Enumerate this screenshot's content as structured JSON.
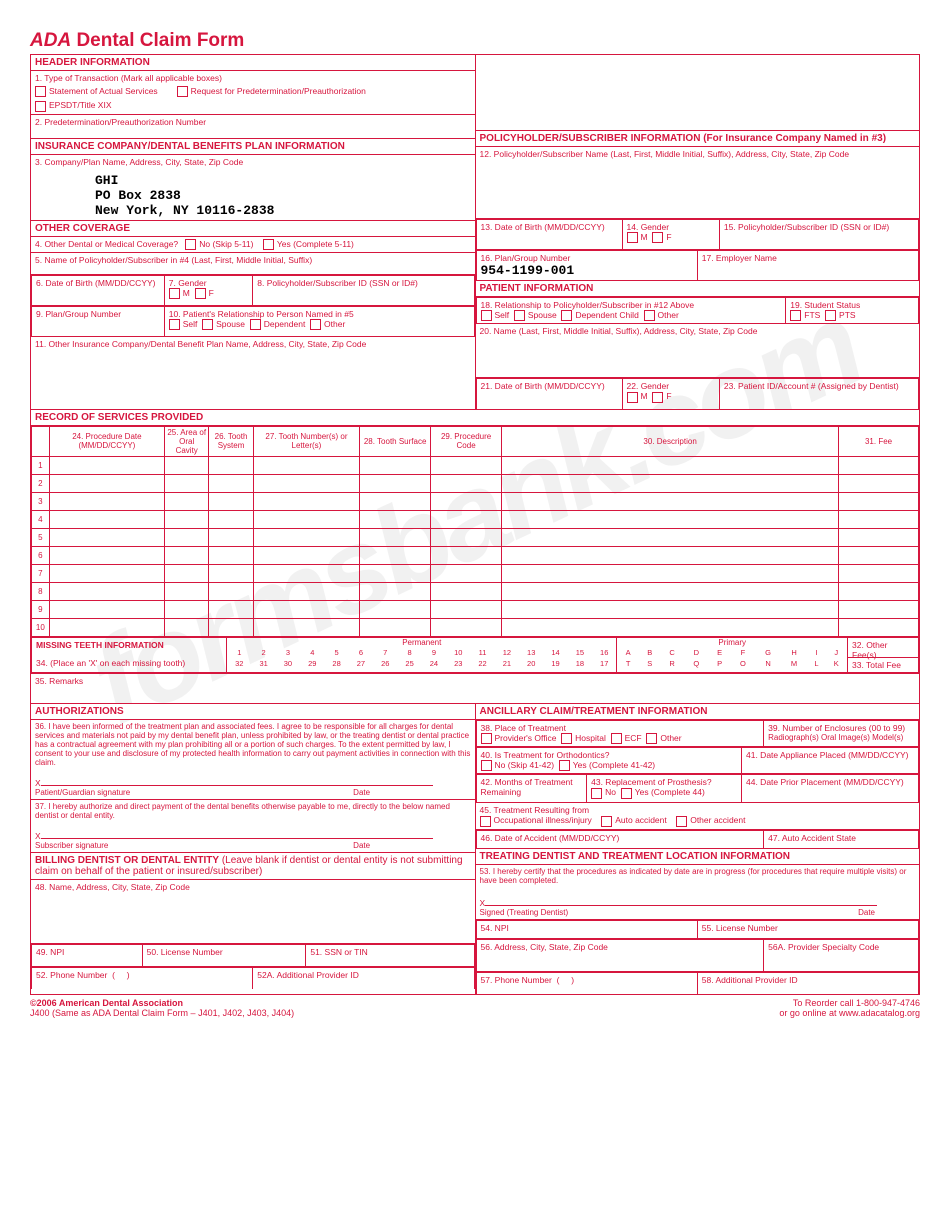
{
  "watermark": "formsbank.com",
  "title_prefix": "ADA",
  "title": "Dental Claim Form",
  "header_info": {
    "heading": "HEADER INFORMATION",
    "q1": "1. Type of Transaction (Mark all applicable boxes)",
    "opt_a": "Statement of Actual Services",
    "opt_b": "Request for Predetermination/Preauthorization",
    "opt_c": "EPSDT/Title XIX",
    "q2": "2. Predetermination/Preauthorization Number"
  },
  "insurance": {
    "heading": "INSURANCE COMPANY/DENTAL BENEFITS PLAN INFORMATION",
    "q3": "3. Company/Plan Name, Address, City, State, Zip Code",
    "name": "GHI",
    "addr1": "PO Box 2838",
    "addr2": "New York, NY 10116-2838"
  },
  "other_cov": {
    "heading": "OTHER COVERAGE",
    "q4": "4. Other Dental or Medical Coverage?",
    "no": "No (Skip 5-11)",
    "yes": "Yes (Complete 5-11)",
    "q5": "5. Name of Policyholder/Subscriber in #4 (Last, First, Middle Initial, Suffix)",
    "q6": "6. Date of Birth (MM/DD/CCYY)",
    "q7": "7. Gender",
    "q7m": "M",
    "q7f": "F",
    "q8": "8. Policyholder/Subscriber ID (SSN or ID#)",
    "q9": "9. Plan/Group Number",
    "q10": "10. Patient's Relationship to Person Named in #5",
    "self": "Self",
    "spouse": "Spouse",
    "dep": "Dependent",
    "other": "Other",
    "q11": "11. Other Insurance Company/Dental Benefit Plan Name, Address, City, State, Zip Code"
  },
  "policyholder": {
    "heading": "POLICYHOLDER/SUBSCRIBER INFORMATION (For Insurance Company Named in #3)",
    "q12": "12. Policyholder/Subscriber Name (Last, First, Middle Initial, Suffix), Address, City, State, Zip Code",
    "q13": "13. Date of Birth (MM/DD/CCYY)",
    "q14": "14. Gender",
    "m": "M",
    "f": "F",
    "q15": "15. Policyholder/Subscriber ID (SSN or ID#)",
    "q16": "16. Plan/Group Number",
    "q16_val": "954-1199-001",
    "q17": "17. Employer Name"
  },
  "patient": {
    "heading": "PATIENT INFORMATION",
    "q18": "18. Relationship to Policyholder/Subscriber in #12 Above",
    "self": "Self",
    "spouse": "Spouse",
    "depchild": "Dependent Child",
    "other": "Other",
    "q19": "19. Student Status",
    "fts": "FTS",
    "pts": "PTS",
    "q20": "20. Name (Last, First, Middle Initial, Suffix), Address, City, State, Zip Code",
    "q21": "21. Date of Birth (MM/DD/CCYY)",
    "q22": "22. Gender",
    "m": "M",
    "f": "F",
    "q23": "23. Patient ID/Account # (Assigned by Dentist)"
  },
  "services": {
    "heading": "RECORD OF SERVICES PROVIDED",
    "c24": "24. Procedure Date (MM/DD/CCYY)",
    "c25": "25. Area of Oral Cavity",
    "c26": "26. Tooth System",
    "c27": "27. Tooth Number(s) or Letter(s)",
    "c28": "28. Tooth Surface",
    "c29": "29. Procedure Code",
    "c30": "30. Description",
    "c31": "31. Fee",
    "rows": [
      "1",
      "2",
      "3",
      "4",
      "5",
      "6",
      "7",
      "8",
      "9",
      "10"
    ]
  },
  "missing": {
    "heading": "MISSING TEETH INFORMATION",
    "q34": "34. (Place an 'X' on each missing tooth)",
    "perm": "Permanent",
    "prim": "Primary",
    "r1": [
      "1",
      "2",
      "3",
      "4",
      "5",
      "6",
      "7",
      "8",
      "9",
      "10",
      "11",
      "12",
      "13",
      "14",
      "15",
      "16"
    ],
    "r2": [
      "32",
      "31",
      "30",
      "29",
      "28",
      "27",
      "26",
      "25",
      "24",
      "23",
      "22",
      "21",
      "20",
      "19",
      "18",
      "17"
    ],
    "r3": [
      "A",
      "B",
      "C",
      "D",
      "E",
      "F",
      "G",
      "H",
      "I",
      "J"
    ],
    "r4": [
      "T",
      "S",
      "R",
      "Q",
      "P",
      "O",
      "N",
      "M",
      "L",
      "K"
    ],
    "q32": "32. Other Fee(s)",
    "q33": "33. Total Fee"
  },
  "remarks": "35. Remarks",
  "auth": {
    "heading": "AUTHORIZATIONS",
    "q36": "36. I have been informed of the treatment plan and associated fees. I agree to be responsible for all charges for dental services and materials not paid by my dental benefit plan, unless prohibited by law, or the treating dentist or dental practice has a contractual agreement with my plan prohibiting all or a portion of such charges. To the extent permitted by law, I consent to your use and disclosure of my protected health information to carry out payment activities in connection with this claim.",
    "sig1": "Patient/Guardian signature",
    "date": "Date",
    "q37": "37. I hereby authorize and direct payment of the dental benefits otherwise payable to me, directly to the below named dentist or dental entity.",
    "sig2": "Subscriber signature"
  },
  "ancillary": {
    "heading": "ANCILLARY CLAIM/TREATMENT INFORMATION",
    "q38": "38. Place of Treatment",
    "po": "Provider's Office",
    "hosp": "Hospital",
    "ecf": "ECF",
    "oth": "Other",
    "q39": "39. Number of Enclosures (00 to 99)",
    "q39s": "Radiograph(s)   Oral Image(s)   Model(s)",
    "q40": "40. Is Treatment for Orthodontics?",
    "no": "No (Skip 41-42)",
    "yes": "Yes (Complete 41-42)",
    "q41": "41. Date Appliance Placed (MM/DD/CCYY)",
    "q42": "42. Months of Treatment Remaining",
    "q43": "43. Replacement of Prosthesis?",
    "no43": "No",
    "yes43": "Yes (Complete 44)",
    "q44": "44. Date Prior Placement (MM/DD/CCYY)",
    "q45": "45. Treatment Resulting from",
    "occ": "Occupational illness/injury",
    "auto": "Auto accident",
    "othacc": "Other accident",
    "q46": "46. Date of Accident (MM/DD/CCYY)",
    "q47": "47. Auto Accident State"
  },
  "billing": {
    "heading": "BILLING DENTIST OR DENTAL ENTITY",
    "sub": " (Leave blank if dentist or dental entity is not submitting claim on behalf of the patient or insured/subscriber)",
    "q48": "48. Name, Address, City, State, Zip Code",
    "q49": "49. NPI",
    "q50": "50. License Number",
    "q51": "51. SSN or TIN",
    "q52": "52. Phone Number",
    "q52a": "52A. Additional Provider ID"
  },
  "treating": {
    "heading": "TREATING DENTIST AND TREATMENT LOCATION INFORMATION",
    "q53": "53. I hereby certify that the procedures as indicated by date are in progress (for procedures that require multiple visits) or have been completed.",
    "sig": "Signed (Treating Dentist)",
    "date": "Date",
    "q54": "54. NPI",
    "q55": "55. License Number",
    "q56": "56. Address, City, State, Zip Code",
    "q56a": "56A. Provider Specialty Code",
    "q57": "57. Phone Number",
    "q58": "58. Additional Provider ID"
  },
  "footer": {
    "copy": "©2006 American Dental Association",
    "sub": "J400 (Same as ADA Dental Claim Form – J401, J402, J403, J404)",
    "reorder": "To Reorder call 1-800-947-4746",
    "online": "or go online at www.adacatalog.org"
  }
}
